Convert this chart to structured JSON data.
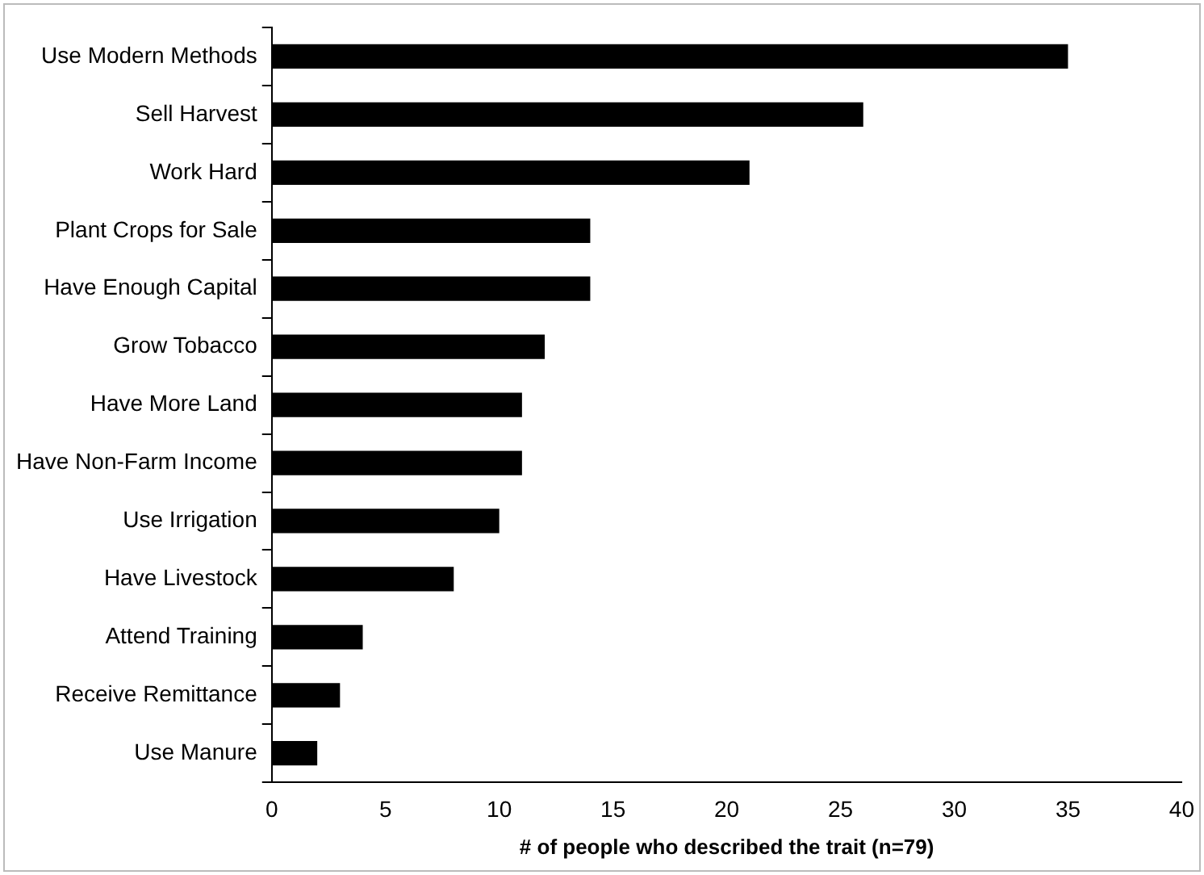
{
  "chart_data": {
    "type": "bar",
    "orientation": "horizontal",
    "xlabel": "# of people who described the trait (n=79)",
    "categories": [
      "Use Modern Methods",
      "Sell Harvest",
      "Work Hard",
      "Plant Crops for Sale",
      "Have Enough Capital",
      "Grow Tobacco",
      "Have More Land",
      "Have Non-Farm Income",
      "Use Irrigation",
      "Have Livestock",
      "Attend Training",
      "Receive Remittance",
      "Use Manure"
    ],
    "values": [
      35,
      26,
      21,
      14,
      14,
      12,
      11,
      11,
      10,
      8,
      4,
      3,
      2
    ],
    "color": "#000000",
    "xlim": [
      0,
      40
    ],
    "xticks": [
      0,
      5,
      10,
      15,
      20,
      25,
      30,
      35,
      40
    ],
    "grid": false,
    "legend": false
  }
}
